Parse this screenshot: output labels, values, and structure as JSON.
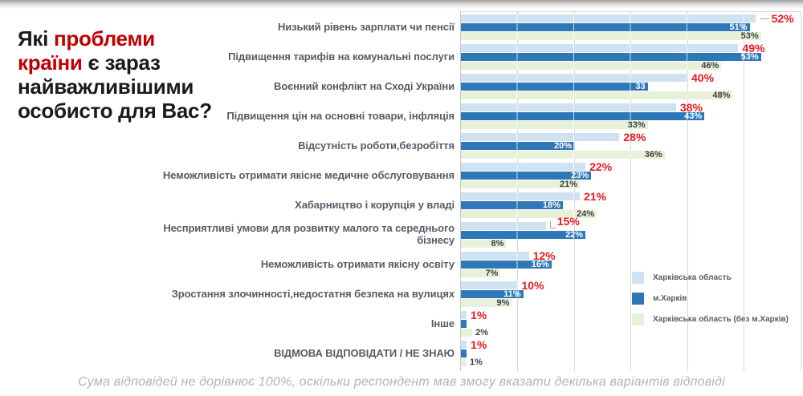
{
  "title": {
    "pre": "Які ",
    "highlight": "проблеми країни",
    "post": " є зараз найважливішими особисто для Вас?"
  },
  "footer": "Сума відповідей не дорівнює 100%, оскільки респондент мав змогу вказати декілька варіантів відповіді",
  "legend": [
    {
      "label": "Харківська область",
      "color": "#cfe2f2"
    },
    {
      "label": "м.Харків",
      "color": "#2f78b8"
    },
    {
      "label": "Харківська область (без м.Харків)",
      "color": "#e7f1da"
    }
  ],
  "colors": {
    "series_light_blue": "#cfe2f2",
    "series_dark_blue": "#2f78b8",
    "series_light_green": "#e7f1da",
    "red_value_label": "#e8191f",
    "title_highlight_red": "#c00000",
    "category_text": "#565c66",
    "gridline": "#d9d9d9",
    "footer_text": "#b3b3b6"
  },
  "chart_data": {
    "type": "bar",
    "orientation": "horizontal",
    "title": "Які проблеми країни є зараз найважливішими особисто для Вас?",
    "xlim": [
      0,
      60
    ],
    "gridline_step_percent": 10,
    "grid": true,
    "legend_position": "right-middle",
    "categories": [
      "Низький рівень зарплати чи пенсії",
      "Підвищення тарифів на комунальні послуги",
      "Воєнний конфлікт на Сході України",
      "Підвищення цін на основні товари, інфляція",
      "Відсутність роботи,безробіття",
      "Неможливість отримати якісне медичне обслуговування",
      "Хабарництво і корупція у владі",
      "Несприятливі умови для розвитку малого та середнього бізнесу",
      "Неможливість отримати якісну освіту",
      "Зростання злочинності,недостатня безпека на вулицях",
      "Інше",
      "ВІДМОВА ВІДПОВІДАТИ / НЕ ЗНАЮ"
    ],
    "series": [
      {
        "name": "Харківська область",
        "color": "#cfe2f2",
        "values": [
          52,
          49,
          40,
          38,
          28,
          22,
          21,
          15,
          12,
          10,
          1,
          1
        ],
        "labels": [
          "52%",
          "49%",
          "40%",
          "38%",
          "28%",
          "22%",
          "21%",
          "15%",
          "12%",
          "10%",
          "1%",
          "1%"
        ],
        "label_style": "red-outside",
        "leaders": [
          "dash",
          "",
          "",
          "",
          "",
          "",
          "",
          "elbow",
          "",
          "",
          "",
          ""
        ]
      },
      {
        "name": "м.Харків",
        "color": "#2f78b8",
        "values": [
          51,
          53,
          33,
          43,
          20,
          23,
          18,
          22,
          16,
          11,
          1,
          1
        ],
        "labels": [
          "51%",
          "53%",
          "33",
          "43%",
          "20%",
          "23%",
          "18%",
          "22%",
          "16%",
          "11%",
          "",
          ""
        ],
        "label_style": "white-inside"
      },
      {
        "name": "Харківська область (без м.Харків)",
        "color": "#e7f1da",
        "values": [
          53,
          46,
          48,
          33,
          36,
          21,
          24,
          8,
          7,
          9,
          2,
          1
        ],
        "labels": [
          "53%",
          "46%",
          "48%",
          "33%",
          "36%",
          "21%",
          "24%",
          "8%",
          "7%",
          "9%",
          "2%",
          "1%"
        ],
        "label_style": "dark-inside-or-outside"
      }
    ]
  }
}
